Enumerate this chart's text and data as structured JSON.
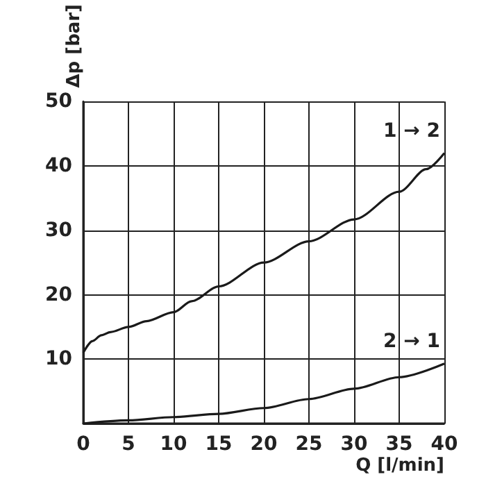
{
  "chart_data": {
    "type": "line",
    "xlabel": "Q [l/min]",
    "ylabel": "Δp [bar]",
    "xlim": [
      0,
      40
    ],
    "xticks": [
      0,
      5,
      10,
      15,
      20,
      25,
      30,
      35,
      40
    ],
    "ylim": [
      0,
      50
    ],
    "yticks": [
      {
        "value": 0,
        "label": null
      },
      10,
      20,
      30,
      40,
      50
    ],
    "grid": true,
    "legend": false,
    "marker": "none",
    "line_style": "solid",
    "series": [
      {
        "name": "1 → 2",
        "color": "#1a1a1a",
        "x": [
          0,
          1,
          2,
          3,
          5,
          7,
          10,
          12,
          15,
          20,
          25,
          30,
          35,
          38,
          40
        ],
        "values": [
          11,
          12.8,
          13.7,
          14.2,
          15,
          15.9,
          17.3,
          19,
          21.3,
          25,
          28.3,
          31.7,
          36,
          39.5,
          42
        ]
      },
      {
        "name": "2 → 1",
        "color": "#1a1a1a",
        "x": [
          0,
          5,
          10,
          15,
          20,
          25,
          30,
          35,
          40
        ],
        "values": [
          0,
          0.5,
          1,
          1.5,
          2.4,
          3.8,
          5.4,
          7.2,
          9.3
        ]
      }
    ]
  }
}
